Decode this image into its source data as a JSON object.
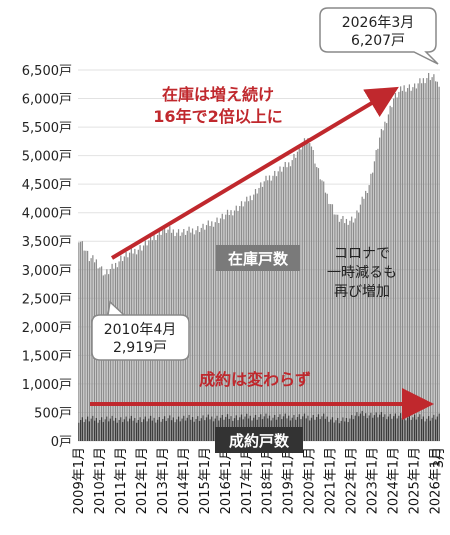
{
  "chart_data": {
    "type": "bar",
    "stacked": true,
    "ylim": [
      0,
      6500
    ],
    "yticks": [
      "0戸",
      "500戸",
      "1,000戸",
      "1,500戸",
      "2,000戸",
      "2,500戸",
      "3,000戸",
      "3,500戸",
      "4,000戸",
      "4,500戸",
      "5,000戸",
      "5,500戸",
      "6,000戸",
      "6,500戸"
    ],
    "ytick_values": [
      0,
      500,
      1000,
      1500,
      2000,
      2500,
      3000,
      3500,
      4000,
      4500,
      5000,
      5500,
      6000,
      6500
    ],
    "xticks": [
      "2009年1月",
      "2010年1月",
      "2011年1月",
      "2012年1月",
      "2013年1月",
      "2014年1月",
      "2015年1月",
      "2016年1月",
      "2017年1月",
      "2018年1月",
      "2019年1月",
      "2020年1月",
      "2021年1月",
      "2022年1月",
      "2023年1月",
      "2024年1月",
      "2025年1月",
      "2026年1月",
      "3月"
    ],
    "grid": true,
    "series": [
      {
        "name": "成約戸数",
        "color": "#3a3a3a",
        "keypoints": [
          [
            0,
            380
          ],
          [
            40,
            380
          ],
          [
            100,
            420
          ],
          [
            140,
            420
          ],
          [
            150,
            340
          ],
          [
            160,
            470
          ],
          [
            200,
            400
          ],
          [
            206,
            420
          ]
        ]
      },
      {
        "name": "在庫戸数",
        "color": "#8c8c8c",
        "keypoints": [
          [
            0,
            3560
          ],
          [
            3,
            3400
          ],
          [
            6,
            3200
          ],
          [
            10,
            3150
          ],
          [
            15,
            2919
          ],
          [
            20,
            3050
          ],
          [
            24,
            3200
          ],
          [
            36,
            3400
          ],
          [
            48,
            3700
          ],
          [
            60,
            3650
          ],
          [
            72,
            3750
          ],
          [
            84,
            3950
          ],
          [
            96,
            4200
          ],
          [
            108,
            4600
          ],
          [
            120,
            4850
          ],
          [
            128,
            5200
          ],
          [
            132,
            5300
          ],
          [
            136,
            4800
          ],
          [
            142,
            4300
          ],
          [
            148,
            3900
          ],
          [
            152,
            3850
          ],
          [
            158,
            3900
          ],
          [
            166,
            4500
          ],
          [
            172,
            5300
          ],
          [
            180,
            6000
          ],
          [
            186,
            6200
          ],
          [
            192,
            6200
          ],
          [
            200,
            6400
          ],
          [
            204,
            6350
          ],
          [
            206,
            6207
          ]
        ]
      }
    ],
    "annotations": {
      "callout_top": [
        "2026年3月",
        "6,207戸"
      ],
      "callout_low": [
        "2010年4月",
        "2,919戸"
      ],
      "arrow_up_label": [
        "在庫は増え続け",
        "16年で2倍以上に"
      ],
      "arrow_flat_label": "成約は変わらず",
      "inventory_label": "在庫戸数",
      "covid_note": [
        "コロナで",
        "一時減るも",
        "再び増加"
      ],
      "contract_label": "成約戸数"
    }
  },
  "colors": {
    "inventory": "#8c8c8c",
    "contract": "#3a3a3a",
    "accent_red": "#c0282d",
    "label_bg": "#7a7a7a",
    "contract_label_bg": "#333333"
  }
}
